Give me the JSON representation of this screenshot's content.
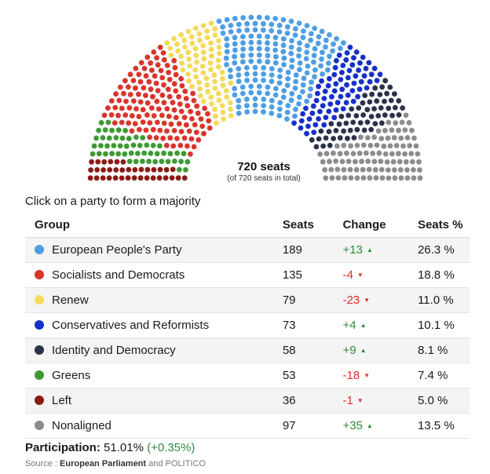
{
  "chart_data": {
    "type": "hemicycle",
    "total_label": "720 seats",
    "total_sub": "(of 720 seats in total)",
    "total_seats": 720,
    "series": [
      {
        "name": "European People's Party",
        "seats": 189,
        "change": "+13",
        "direction": "up",
        "percent": "26.3 %",
        "color": "#4f9ee3"
      },
      {
        "name": "Socialists and Democrats",
        "seats": 135,
        "change": "-4",
        "direction": "down",
        "percent": "18.8 %",
        "color": "#d9352b"
      },
      {
        "name": "Renew",
        "seats": 79,
        "change": "-23",
        "direction": "down",
        "percent": "11.0 %",
        "color": "#f3da5b"
      },
      {
        "name": "Conservatives and Reformists",
        "seats": 73,
        "change": "+4",
        "direction": "up",
        "percent": "10.1 %",
        "color": "#1530c9"
      },
      {
        "name": "Identity and Democracy",
        "seats": 58,
        "change": "+9",
        "direction": "up",
        "percent": "8.1 %",
        "color": "#2b3248"
      },
      {
        "name": "Greens",
        "seats": 53,
        "change": "-18",
        "direction": "down",
        "percent": "7.4 %",
        "color": "#3c9a32"
      },
      {
        "name": "Left",
        "seats": 36,
        "change": "-1",
        "direction": "down",
        "percent": "5.0 %",
        "color": "#8a1a14"
      },
      {
        "name": "Nonaligned",
        "seats": 97,
        "change": "+35",
        "direction": "up",
        "percent": "13.5 %",
        "color": "#8c8c8c"
      }
    ],
    "hemicycle_order": [
      "Left",
      "Greens",
      "Socialists and Democrats",
      "Renew",
      "European People's Party",
      "Conservatives and Reformists",
      "Identity and Democracy",
      "Nonaligned"
    ]
  },
  "prompt": "Click on a party to form a majority",
  "table": {
    "headers": {
      "group": "Group",
      "seats": "Seats",
      "change": "Change",
      "percent": "Seats %"
    }
  },
  "participation": {
    "label": "Participation:",
    "value": "51.01%",
    "delta": "(+0.35%)"
  },
  "source": {
    "prefix": "Source :",
    "main": "European Parliament",
    "suffix": "and POLITICO"
  },
  "icons": {
    "up_arrow": "triangle-up-icon",
    "down_arrow": "triangle-down-icon",
    "party_marker": "circle-icon"
  },
  "colors": {
    "increase": "#2e8b3c",
    "decrease": "#d9302a"
  }
}
